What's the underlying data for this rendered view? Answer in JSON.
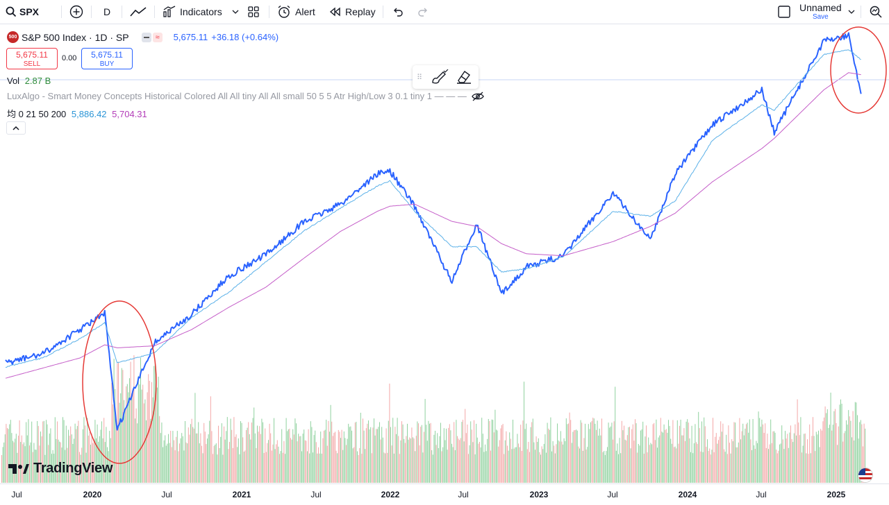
{
  "toolbar": {
    "symbol": "SPX",
    "interval": "D",
    "indicators_label": "Indicators",
    "alert_label": "Alert",
    "replay_label": "Replay",
    "layout_name": "Unnamed",
    "save_label": "Save"
  },
  "legend": {
    "symbol_badge": "500",
    "title": "S&P 500 Index · 1D · SP",
    "price": "5,675.11",
    "change": "+36.18 (+0.64%)",
    "sell_price": "5,675.11",
    "sell_label": "SELL",
    "spread": "0.00",
    "buy_price": "5,675.11",
    "buy_label": "BUY",
    "vol_label": "Vol",
    "vol_value": "2.87 B",
    "indicator_text": "LuxAlgo - Smart Money Concepts Historical Colored All All tiny All All small 50 5 5 Atr High/Low 3 0.1 tiny 1 — — —",
    "ma_label": "均 0 21 50 200",
    "ma_value_1": "5,886.42",
    "ma_value_2": "5,704.31"
  },
  "brand": {
    "name": "TradingView"
  },
  "colors": {
    "price_line": "#2962ff",
    "ma_fast": "#5ab0e8",
    "ma_slow": "#c45cc8",
    "sell": "#f23645",
    "volume_up": "#8fd19e",
    "volume_down": "#f4a7a7",
    "highlight_circle": "#e53935",
    "vol_value": "#2e8b3a"
  },
  "time_axis": [
    {
      "label": "Jul",
      "year": false
    },
    {
      "label": "2020",
      "year": true
    },
    {
      "label": "Jul",
      "year": false
    },
    {
      "label": "2021",
      "year": true
    },
    {
      "label": "Jul",
      "year": false
    },
    {
      "label": "2022",
      "year": true
    },
    {
      "label": "Jul",
      "year": false
    },
    {
      "label": "2023",
      "year": true
    },
    {
      "label": "Jul",
      "year": false
    },
    {
      "label": "2024",
      "year": true
    },
    {
      "label": "Jul",
      "year": false
    },
    {
      "label": "2025",
      "year": true
    }
  ],
  "chart_data": {
    "type": "line",
    "title": "S&P 500 Index · 1D · SP",
    "x": [
      "2019-06",
      "2019-09",
      "2019-12",
      "2020-02",
      "2020-03",
      "2020-06",
      "2020-09",
      "2020-12",
      "2021-03",
      "2021-06",
      "2021-09",
      "2021-12",
      "2022-01",
      "2022-03",
      "2022-06",
      "2022-08",
      "2022-10",
      "2022-12",
      "2023-03",
      "2023-07",
      "2023-10",
      "2023-12",
      "2024-03",
      "2024-07",
      "2024-08",
      "2024-12",
      "2025-02",
      "2025-03"
    ],
    "series": [
      {
        "name": "S&P 500",
        "values": [
          2900,
          2990,
          3230,
          3390,
          2240,
          3100,
          3380,
          3760,
          3970,
          4290,
          4470,
          4770,
          4800,
          4450,
          3700,
          4280,
          3580,
          3850,
          3960,
          4580,
          4120,
          4770,
          5250,
          5600,
          5180,
          6080,
          6140,
          5560
        ]
      },
      {
        "name": "MA 50",
        "values": [
          2860,
          2950,
          3140,
          3300,
          2900,
          3000,
          3350,
          3600,
          3900,
          4200,
          4430,
          4650,
          4700,
          4400,
          4050,
          4050,
          3800,
          3830,
          3950,
          4400,
          4350,
          4500,
          5100,
          5450,
          5400,
          5950,
          6000,
          5900
        ]
      },
      {
        "name": "MA 200",
        "values": [
          2750,
          2850,
          2950,
          3080,
          3050,
          3070,
          3230,
          3450,
          3650,
          3930,
          4200,
          4400,
          4450,
          4470,
          4300,
          4250,
          4080,
          3980,
          3960,
          4100,
          4250,
          4380,
          4690,
          5020,
          5120,
          5600,
          5770,
          5750
        ]
      }
    ],
    "volume": {
      "name": "Vol",
      "last": "2.87 B"
    },
    "annotations": [
      "circle around 2020 crash",
      "circle around 2025 decline"
    ]
  }
}
